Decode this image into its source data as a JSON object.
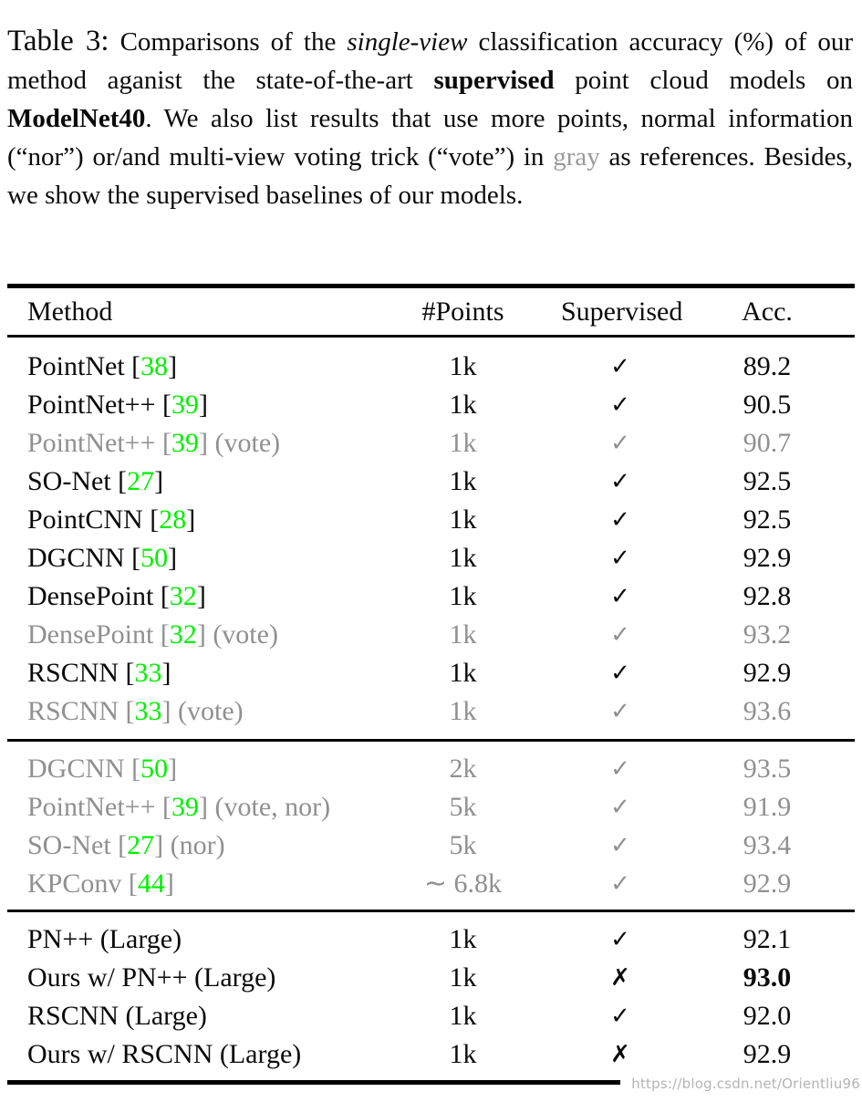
{
  "colors": {
    "text": "#0a0a0a",
    "gray_row": "#909090",
    "citation_green": "#00f000",
    "caption_gray_word": "#9a9a9a",
    "watermark": "#b4b4b4"
  },
  "caption": {
    "label": "Table 3:",
    "t1": " Comparisons of the ",
    "italic1": "single-view",
    "t2": " classification accuracy (%) of our method aganist the state-of-the-art ",
    "bold1": "supervised",
    "t3": " point cloud models on ",
    "bold2": "ModelNet40",
    "t4": ". We also list results that use more points, normal information (“nor”) or/and multi-view voting trick (“vote”) in ",
    "gray_word": "gray",
    "t5": " as references. Besides, we show the supervised baselines of our models."
  },
  "table": {
    "headers": [
      "Method",
      "#Points",
      "Supervised",
      "Acc."
    ],
    "sections": [
      {
        "rows": [
          {
            "method_pre": "PointNet [",
            "cite": "38",
            "method_post": "]",
            "points": "1k",
            "supervised": "check",
            "acc": "89.2",
            "gray": false,
            "acc_bold": false
          },
          {
            "method_pre": "PointNet++ [",
            "cite": "39",
            "method_post": "]",
            "points": "1k",
            "supervised": "check",
            "acc": "90.5",
            "gray": false,
            "acc_bold": false
          },
          {
            "method_pre": "PointNet++ [",
            "cite": "39",
            "method_post": "] (vote)",
            "points": "1k",
            "supervised": "check",
            "acc": "90.7",
            "gray": true,
            "acc_bold": false
          },
          {
            "method_pre": "SO-Net [",
            "cite": "27",
            "method_post": "]",
            "points": "1k",
            "supervised": "check",
            "acc": "92.5",
            "gray": false,
            "acc_bold": false
          },
          {
            "method_pre": "PointCNN [",
            "cite": "28",
            "method_post": "]",
            "points": "1k",
            "supervised": "check",
            "acc": "92.5",
            "gray": false,
            "acc_bold": false
          },
          {
            "method_pre": "DGCNN [",
            "cite": "50",
            "method_post": "]",
            "points": "1k",
            "supervised": "check",
            "acc": "92.9",
            "gray": false,
            "acc_bold": false
          },
          {
            "method_pre": "DensePoint [",
            "cite": "32",
            "method_post": "]",
            "points": "1k",
            "supervised": "check",
            "acc": "92.8",
            "gray": false,
            "acc_bold": false
          },
          {
            "method_pre": "DensePoint [",
            "cite": "32",
            "method_post": "] (vote)",
            "points": "1k",
            "supervised": "check",
            "acc": "93.2",
            "gray": true,
            "acc_bold": false
          },
          {
            "method_pre": "RSCNN [",
            "cite": "33",
            "method_post": "]",
            "points": "1k",
            "supervised": "check",
            "acc": "92.9",
            "gray": false,
            "acc_bold": false
          },
          {
            "method_pre": "RSCNN [",
            "cite": "33",
            "method_post": "] (vote)",
            "points": "1k",
            "supervised": "check",
            "acc": "93.6",
            "gray": true,
            "acc_bold": false
          }
        ]
      },
      {
        "rows": [
          {
            "method_pre": "DGCNN [",
            "cite": "50",
            "method_post": "]",
            "points": "2k",
            "supervised": "check",
            "acc": "93.5",
            "gray": true,
            "acc_bold": false
          },
          {
            "method_pre": "PointNet++ [",
            "cite": "39",
            "method_post": "] (vote, nor)",
            "points": "5k",
            "supervised": "check",
            "acc": "91.9",
            "gray": true,
            "acc_bold": false
          },
          {
            "method_pre": "SO-Net [",
            "cite": "27",
            "method_post": "] (nor)",
            "points": "5k",
            "supervised": "check",
            "acc": "93.4",
            "gray": true,
            "acc_bold": false
          },
          {
            "method_pre": "KPConv [",
            "cite": "44",
            "method_post": "]",
            "points": "∼ 6.8k",
            "supervised": "check",
            "acc": "92.9",
            "gray": true,
            "acc_bold": false
          }
        ]
      },
      {
        "rows": [
          {
            "method_pre": "PN++ (Large)",
            "cite": "",
            "method_post": "",
            "points": "1k",
            "supervised": "check",
            "acc": "92.1",
            "gray": false,
            "acc_bold": false
          },
          {
            "method_pre": "Ours w/ PN++ (Large)",
            "cite": "",
            "method_post": "",
            "points": "1k",
            "supervised": "cross",
            "acc": "93.0",
            "gray": false,
            "acc_bold": true
          },
          {
            "method_pre": "RSCNN (Large)",
            "cite": "",
            "method_post": "",
            "points": "1k",
            "supervised": "check",
            "acc": "92.0",
            "gray": false,
            "acc_bold": false
          },
          {
            "method_pre": "Ours w/ RSCNN (Large)",
            "cite": "",
            "method_post": "",
            "points": "1k",
            "supervised": "cross",
            "acc": "92.9",
            "gray": false,
            "acc_bold": false
          }
        ]
      }
    ]
  },
  "icons": {
    "check": "✓",
    "cross": "✗"
  },
  "watermark": {
    "text": "https://blog.csdn.net/Orientliu96"
  }
}
